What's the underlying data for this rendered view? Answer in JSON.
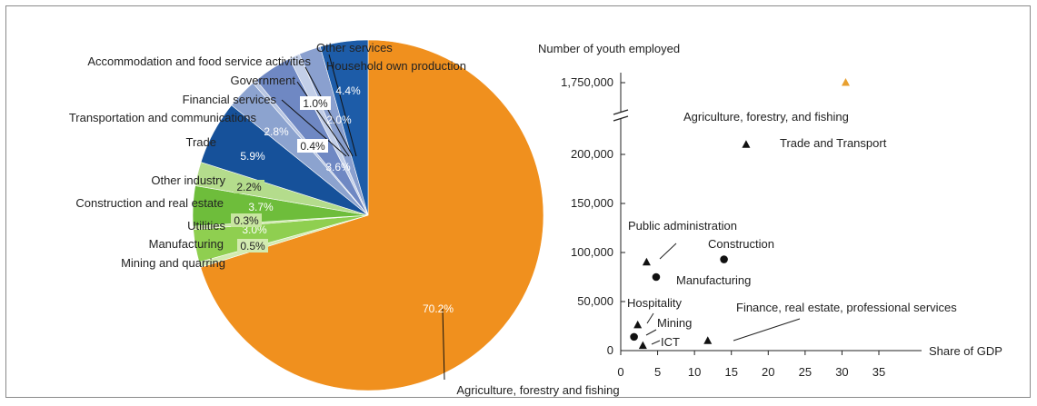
{
  "chart_data": [
    {
      "type": "pie",
      "title": "",
      "slices": [
        {
          "label": "Agriculture, forestry and fishing",
          "value": 70.2,
          "value_label": "70.2%",
          "color": "#f0901e"
        },
        {
          "label": "Mining and quarring",
          "value": 0.5,
          "value_label": "0.5%",
          "color": "#d3ebb0"
        },
        {
          "label": "Manufacturing",
          "value": 3.0,
          "value_label": "3.0%",
          "color": "#8fcf50"
        },
        {
          "label": "Utilities",
          "value": 0.3,
          "value_label": "0.3%",
          "color": "#c8e6a0"
        },
        {
          "label": "Construction and real estate",
          "value": 3.7,
          "value_label": "3.7%",
          "color": "#6ebd3b"
        },
        {
          "label": "Other industry",
          "value": 2.2,
          "value_label": "2.2%",
          "color": "#b4dc8c"
        },
        {
          "label": "Trade",
          "value": 5.9,
          "value_label": "5.9%",
          "color": "#16519a"
        },
        {
          "label": "Transportation and communications",
          "value": 2.8,
          "value_label": "2.8%",
          "color": "#8ca3cf"
        },
        {
          "label": "Financial services",
          "value": 0.4,
          "value_label": "0.4%",
          "color": "#b8c6e2"
        },
        {
          "label": "Government",
          "value": 3.6,
          "value_label": "3.6%",
          "color": "#6f88c3"
        },
        {
          "label": "Accommodation and food service activities",
          "value": 1.0,
          "value_label": "1.0%",
          "color": "#c3cfe8"
        },
        {
          "label": "Other services",
          "value": 2.0,
          "value_label": "2.0%",
          "color": "#8aa0cf"
        },
        {
          "label": "Household own production",
          "value": 4.4,
          "value_label": "4.4%",
          "color": "#1d5ca8"
        }
      ]
    },
    {
      "type": "scatter",
      "title": "",
      "xlabel": "Share of GDP",
      "ylabel": "Number of youth employed",
      "xlim": [
        0,
        35
      ],
      "x_ticks": [
        "0",
        "5",
        "10",
        "15",
        "20",
        "25",
        "30",
        "35"
      ],
      "y_ticks": [
        "0",
        "50,000",
        "100,000",
        "150,000",
        "200,000",
        "1,750,000"
      ],
      "y_axis_break": "between 200,000 and 1,750,000",
      "points": [
        {
          "label": "Agriculture, forestry, and fishing",
          "x": 30.5,
          "y": 1750000,
          "marker": "triangle",
          "color": "#e8a030"
        },
        {
          "label": "Trade and Transport",
          "x": 17,
          "y": 210000,
          "marker": "triangle",
          "color": "#111111"
        },
        {
          "label": "Construction",
          "x": 14,
          "y": 93000,
          "marker": "circle",
          "color": "#111111"
        },
        {
          "label": "Public administration",
          "x": 3.5,
          "y": 90000,
          "marker": "triangle",
          "color": "#111111"
        },
        {
          "label": "Manufacturing",
          "x": 4.8,
          "y": 75000,
          "marker": "circle",
          "color": "#111111"
        },
        {
          "label": "Hospitality",
          "x": 2.3,
          "y": 26000,
          "marker": "triangle",
          "color": "#111111"
        },
        {
          "label": "Mining",
          "x": 1.8,
          "y": 14000,
          "marker": "circle",
          "color": "#111111"
        },
        {
          "label": "ICT",
          "x": 3.0,
          "y": 5000,
          "marker": "triangle",
          "color": "#111111"
        },
        {
          "label": "Finance, real estate, professional services",
          "x": 11.8,
          "y": 10000,
          "marker": "triangle",
          "color": "#111111"
        }
      ]
    }
  ]
}
